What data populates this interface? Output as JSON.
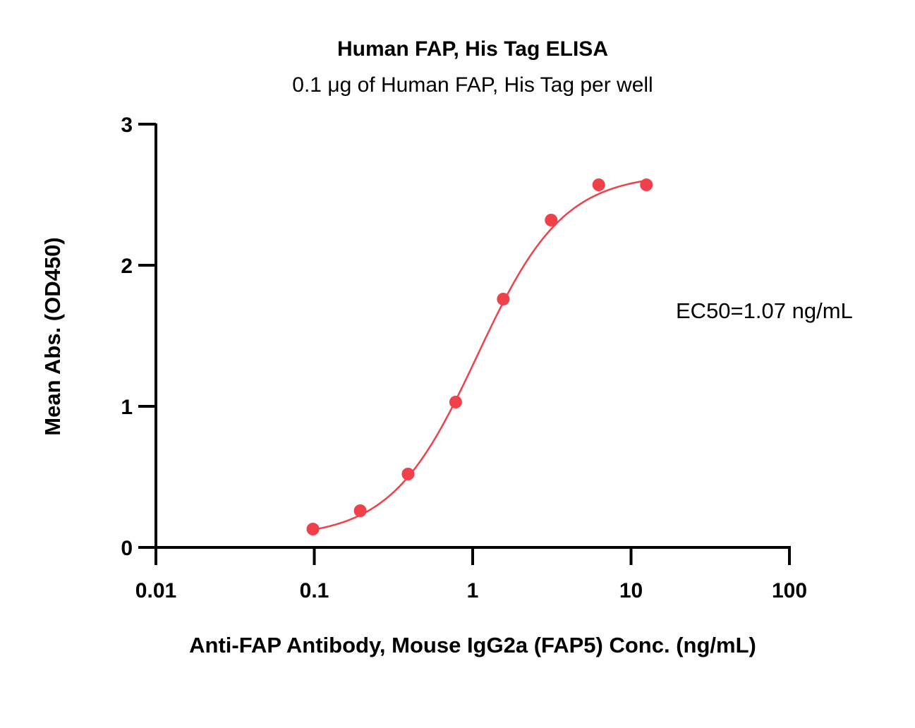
{
  "chart_data": {
    "type": "scatter",
    "title": "Human FAP, His Tag ELISA",
    "subtitle": "0.1 μg of Human FAP, His Tag per well",
    "xlabel": "Anti-FAP Antibody, Mouse IgG2a (FAP5) Conc. (ng/mL)",
    "ylabel": "Mean Abs. (OD450)",
    "x_scale": "log",
    "xlim": [
      0.01,
      100
    ],
    "ylim": [
      0,
      3
    ],
    "x_ticks": [
      0.01,
      0.1,
      1,
      10,
      100
    ],
    "x_tick_labels": [
      "0.01",
      "0.1",
      "1",
      "10",
      "100"
    ],
    "y_ticks": [
      0,
      1,
      2,
      3
    ],
    "y_tick_labels": [
      "0",
      "1",
      "2",
      "3"
    ],
    "grid": false,
    "legend": "none",
    "series": [
      {
        "color": "#f0404a",
        "marker": "circle",
        "fit": "4PL sigmoidal curve",
        "x": [
          0.098,
          0.195,
          0.391,
          0.781,
          1.56,
          3.13,
          6.25,
          12.5
        ],
        "y": [
          0.13,
          0.26,
          0.52,
          1.03,
          1.76,
          2.32,
          2.57,
          2.57
        ]
      }
    ],
    "fit_params": {
      "bottom": 0.07,
      "top": 2.65,
      "ec50": 1.07,
      "hill": 1.6
    },
    "annotations": [
      {
        "text": "EC50=1.07 ng/mL"
      }
    ]
  }
}
